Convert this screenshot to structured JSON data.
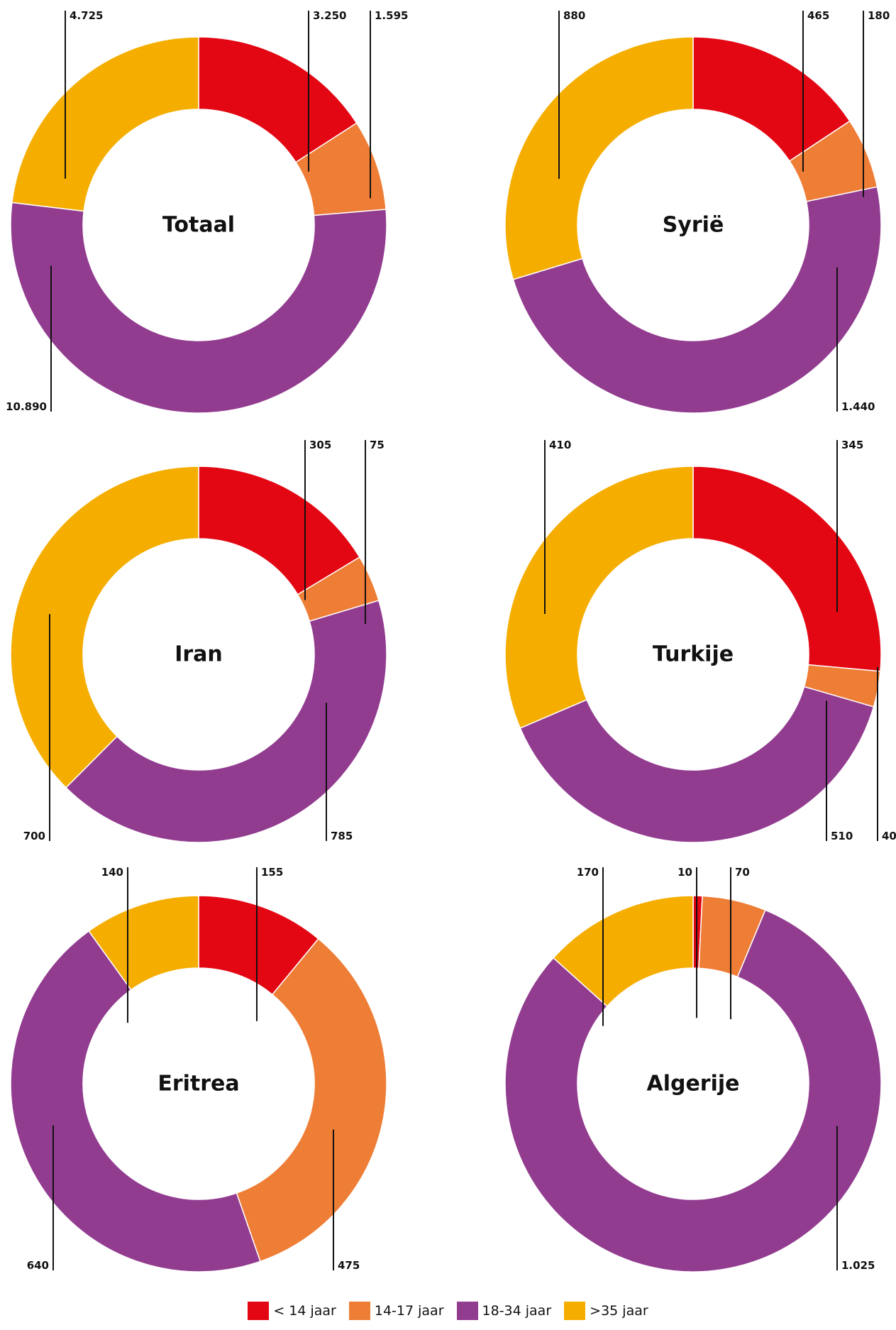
{
  "chart_data": [
    {
      "type": "pie",
      "title": "Totaal",
      "categories": [
        "< 14 jaar",
        "14-17 jaar",
        "18-34 jaar",
        ">35 jaar"
      ],
      "values": [
        3250,
        1595,
        10890,
        4725
      ],
      "value_labels": [
        "3.250",
        "1.595",
        "10.890",
        "4.725"
      ]
    },
    {
      "type": "pie",
      "title": "Syrië",
      "categories": [
        "< 14 jaar",
        "14-17 jaar",
        "18-34 jaar",
        ">35 jaar"
      ],
      "values": [
        465,
        180,
        1440,
        880
      ],
      "value_labels": [
        "465",
        "180",
        "1.440",
        "880"
      ]
    },
    {
      "type": "pie",
      "title": "Iran",
      "categories": [
        "< 14 jaar",
        "14-17 jaar",
        "18-34 jaar",
        ">35 jaar"
      ],
      "values": [
        305,
        75,
        785,
        700
      ],
      "value_labels": [
        "305",
        "75",
        "785",
        "700"
      ]
    },
    {
      "type": "pie",
      "title": "Turkije",
      "categories": [
        "< 14 jaar",
        "14-17 jaar",
        "18-34 jaar",
        ">35 jaar"
      ],
      "values": [
        345,
        40,
        510,
        410
      ],
      "value_labels": [
        "345",
        "40",
        "510",
        "410"
      ]
    },
    {
      "type": "pie",
      "title": "Eritrea",
      "categories": [
        "< 14 jaar",
        "14-17 jaar",
        "18-34 jaar",
        ">35 jaar"
      ],
      "values": [
        155,
        475,
        640,
        140
      ],
      "value_labels": [
        "155",
        "475",
        "640",
        "140"
      ]
    },
    {
      "type": "pie",
      "title": "Algerije",
      "categories": [
        "< 14 jaar",
        "14-17 jaar",
        "18-34 jaar",
        ">35 jaar"
      ],
      "values": [
        10,
        70,
        1025,
        170
      ],
      "value_labels": [
        "10",
        "70",
        "1.025",
        "170"
      ]
    }
  ],
  "legend": {
    "placement": "bottom",
    "items": [
      {
        "label": "< 14 jaar",
        "color": "#e30613"
      },
      {
        "label": "14-17 jaar",
        "color": "#ee7d36"
      },
      {
        "label": "18-34 jaar",
        "color": "#923c90"
      },
      {
        "label": ">35 jaar",
        "color": "#f5ae00"
      }
    ]
  },
  "colors": [
    "#e30613",
    "#ee7d36",
    "#923c90",
    "#f5ae00"
  ]
}
